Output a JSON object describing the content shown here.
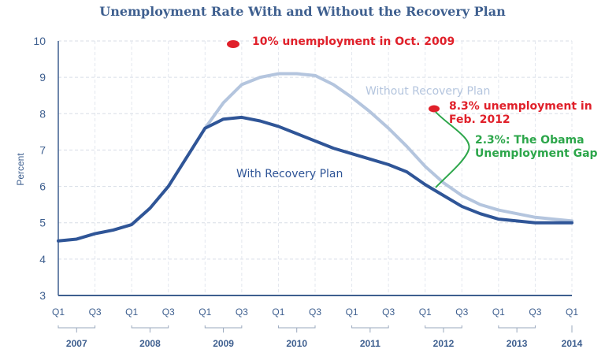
{
  "chart_data": {
    "type": "line",
    "title": "Unemployment Rate With and Without the Recovery Plan",
    "ylabel": "Percent",
    "xlabel": "",
    "ylim": [
      3,
      10
    ],
    "yticks": [
      3,
      4,
      5,
      6,
      7,
      8,
      9,
      10
    ],
    "grid": true,
    "quarter_labels": [
      "Q1",
      "Q3",
      "Q1",
      "Q3",
      "Q1",
      "Q3",
      "Q1",
      "Q3",
      "Q1",
      "Q3",
      "Q1",
      "Q3",
      "Q1",
      "Q3",
      "Q1"
    ],
    "year_labels": [
      "2007",
      "2008",
      "2009",
      "2010",
      "2011",
      "2012",
      "2013",
      "2014"
    ],
    "x_start": "2007 Q1",
    "x_end": "2014 Q1",
    "series": [
      {
        "name": "With Recovery Plan",
        "color": "#2f5597",
        "start": "2007 Q1",
        "values": [
          4.5,
          4.55,
          4.7,
          4.8,
          4.95,
          5.4,
          6.0,
          6.8,
          7.6,
          7.85,
          7.9,
          7.8,
          7.65,
          7.45,
          7.25,
          7.05,
          6.9,
          6.75,
          6.6,
          6.4,
          6.05,
          5.75,
          5.45,
          5.25,
          5.1,
          5.05,
          5.0,
          5.0,
          5.0
        ]
      },
      {
        "name": "Without Recovery Plan",
        "color": "#b4c5de",
        "start": "2009 Q1",
        "values": [
          7.6,
          8.3,
          8.8,
          9.0,
          9.1,
          9.1,
          9.05,
          8.8,
          8.45,
          8.05,
          7.6,
          7.1,
          6.55,
          6.1,
          5.75,
          5.5,
          5.35,
          5.25,
          5.15,
          5.1,
          5.05
        ]
      }
    ],
    "annotations": [
      {
        "text": "10% unemployment in Oct. 2009",
        "color": "#e0202a",
        "marker": {
          "x": "2009 Q3",
          "y": 10
        }
      },
      {
        "text_lines": [
          "8.3% unemployment in",
          "Feb. 2012"
        ],
        "color": "#e0202a",
        "marker": {
          "x": "2012 Q1",
          "y": 8.3
        }
      },
      {
        "text_lines": [
          "2.3%: The Obama",
          "Unemployment Gap"
        ],
        "color": "#2ca64a"
      }
    ]
  }
}
